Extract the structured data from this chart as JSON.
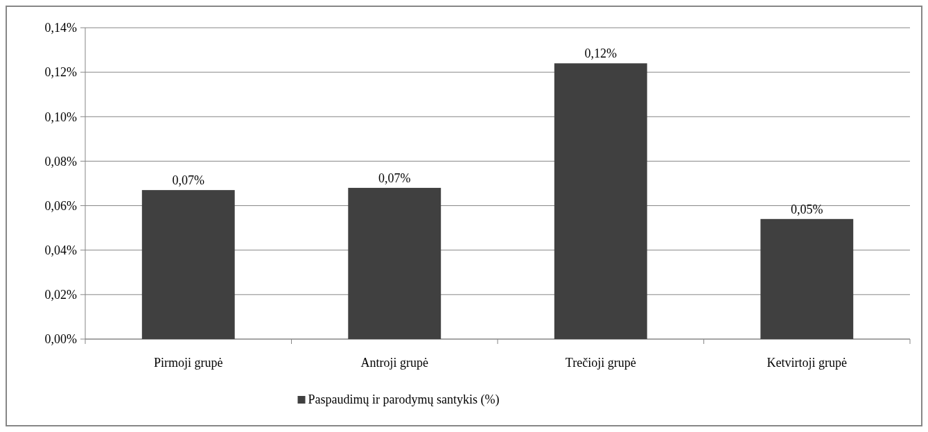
{
  "chart_data": {
    "type": "bar",
    "categories": [
      "Pirmoji grupė",
      "Antroji grupė",
      "Trečioji grupė",
      "Ketvirtoji grupė"
    ],
    "series": [
      {
        "name": "Paspaudimų ir parodymų santykis (%)",
        "color": "#404040",
        "values": [
          0.067,
          0.068,
          0.124,
          0.054
        ],
        "value_labels": [
          "0,07%",
          "0,07%",
          "0,12%",
          "0,05%"
        ]
      }
    ],
    "ylim": [
      0,
      0.14
    ],
    "yticks": [
      {
        "value": 0,
        "label": "0,00%"
      },
      {
        "value": 0.02,
        "label": "0,02%"
      },
      {
        "value": 0.04,
        "label": "0,04%"
      },
      {
        "value": 0.06,
        "label": "0,06%"
      },
      {
        "value": 0.08,
        "label": "0,08%"
      },
      {
        "value": 0.1,
        "label": "0,10%"
      },
      {
        "value": 0.12,
        "label": "0,12%"
      },
      {
        "value": 0.14,
        "label": "0,14%"
      }
    ],
    "grid": "y",
    "legend": "bottom"
  }
}
